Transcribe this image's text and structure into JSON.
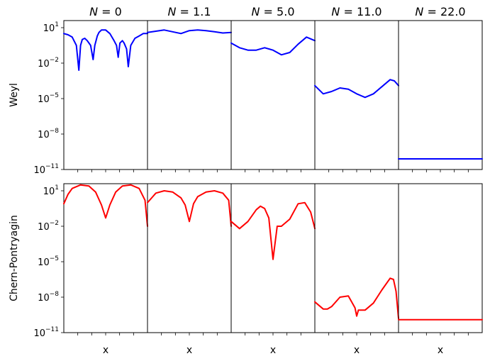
{
  "chart_data": {
    "type": "line",
    "grid": false,
    "y_scale": "log",
    "ylim_exponents": [
      -11,
      1.6
    ],
    "column_titles": [
      "N = 0",
      "N = 1.1",
      "N = 5.0",
      "N = 11.0",
      "N = 22.0"
    ],
    "column_title_parts": [
      {
        "var": "N",
        "value": "0"
      },
      {
        "var": "N",
        "value": "1.1"
      },
      {
        "var": "N",
        "value": "5.0"
      },
      {
        "var": "N",
        "value": "11.0"
      },
      {
        "var": "N",
        "value": "22.0"
      }
    ],
    "xlabel": "x",
    "ytick_exponents": [
      1,
      -2,
      -5,
      -8,
      -11
    ],
    "ytick_base": "10",
    "rows": [
      {
        "ylabel": "Weyl",
        "color": "#0000ff",
        "series_log10": [
          {
            "x": [
              0,
              0.05,
              0.1,
              0.15,
              0.18,
              0.2,
              0.22,
              0.25,
              0.28,
              0.32,
              0.35,
              0.37,
              0.4,
              0.42,
              0.45,
              0.5,
              0.55,
              0.6,
              0.63,
              0.65,
              0.67,
              0.7,
              0.72,
              0.75,
              0.77,
              0.8,
              0.85,
              0.9,
              0.95,
              1.0
            ],
            "y": [
              0.5,
              0.4,
              0.2,
              -0.5,
              -2.6,
              -0.5,
              0.0,
              0.1,
              -0.1,
              -0.5,
              -1.7,
              -0.5,
              0.3,
              0.6,
              0.8,
              0.8,
              0.5,
              -0.1,
              -0.5,
              -1.5,
              -0.3,
              -0.1,
              -0.3,
              -0.8,
              -2.3,
              -0.5,
              0.1,
              0.3,
              0.5,
              0.5
            ]
          },
          {
            "x": [
              0,
              0.1,
              0.2,
              0.3,
              0.4,
              0.5,
              0.6,
              0.7,
              0.8,
              0.9,
              1.0
            ],
            "y": [
              0.6,
              0.7,
              0.8,
              0.65,
              0.5,
              0.75,
              0.8,
              0.75,
              0.65,
              0.55,
              0.6
            ]
          },
          {
            "x": [
              0,
              0.1,
              0.2,
              0.3,
              0.4,
              0.5,
              0.6,
              0.7,
              0.8,
              0.9,
              1.0
            ],
            "y": [
              -0.3,
              -0.7,
              -0.9,
              -0.9,
              -0.7,
              -0.9,
              -1.3,
              -1.1,
              -0.4,
              0.2,
              -0.1
            ]
          },
          {
            "x": [
              0,
              0.1,
              0.2,
              0.3,
              0.4,
              0.5,
              0.6,
              0.7,
              0.8,
              0.9,
              0.95,
              1.0
            ],
            "y": [
              -3.9,
              -4.6,
              -4.4,
              -4.1,
              -4.2,
              -4.6,
              -4.9,
              -4.6,
              -4.0,
              -3.4,
              -3.5,
              -3.9
            ]
          },
          {
            "x": [
              0,
              1.0
            ],
            "y": [
              -10.1,
              -10.1
            ]
          }
        ]
      },
      {
        "ylabel": "Chern-Pontryagin",
        "color": "#ff0000",
        "series_log10": [
          {
            "x": [
              0,
              0.05,
              0.1,
              0.2,
              0.3,
              0.38,
              0.45,
              0.5,
              0.55,
              0.62,
              0.7,
              0.8,
              0.9,
              0.97,
              1.0
            ],
            "y": [
              -0.1,
              0.7,
              1.2,
              1.5,
              1.4,
              0.9,
              -0.2,
              -1.3,
              -0.2,
              0.9,
              1.4,
              1.5,
              1.2,
              0.2,
              -2.0
            ]
          },
          {
            "x": [
              0,
              0.05,
              0.1,
              0.2,
              0.3,
              0.4,
              0.45,
              0.5,
              0.55,
              0.6,
              0.7,
              0.8,
              0.9,
              0.97,
              1.0
            ],
            "y": [
              0.0,
              0.4,
              0.8,
              1.0,
              0.9,
              0.4,
              -0.2,
              -1.6,
              -0.1,
              0.5,
              0.9,
              1.0,
              0.8,
              0.2,
              -2.0
            ]
          },
          {
            "x": [
              0,
              0.05,
              0.1,
              0.2,
              0.3,
              0.35,
              0.4,
              0.45,
              0.5,
              0.55,
              0.6,
              0.7,
              0.8,
              0.88,
              0.95,
              1.0
            ],
            "y": [
              -1.6,
              -1.9,
              -2.2,
              -1.6,
              -0.6,
              -0.3,
              -0.5,
              -1.3,
              -4.8,
              -2.0,
              -2.0,
              -1.4,
              -0.1,
              0.0,
              -0.8,
              -2.2
            ]
          },
          {
            "x": [
              0,
              0.05,
              0.1,
              0.15,
              0.2,
              0.3,
              0.4,
              0.48,
              0.5,
              0.52,
              0.6,
              0.7,
              0.8,
              0.9,
              0.94,
              0.97,
              1.0
            ],
            "y": [
              -8.4,
              -8.7,
              -9.0,
              -9.0,
              -8.8,
              -8.0,
              -7.9,
              -8.9,
              -9.6,
              -9.1,
              -9.1,
              -8.5,
              -7.4,
              -6.4,
              -6.5,
              -7.5,
              -9.8
            ]
          },
          {
            "x": [
              0,
              1.0
            ],
            "y": [
              -9.9,
              -9.9
            ]
          }
        ]
      }
    ]
  }
}
